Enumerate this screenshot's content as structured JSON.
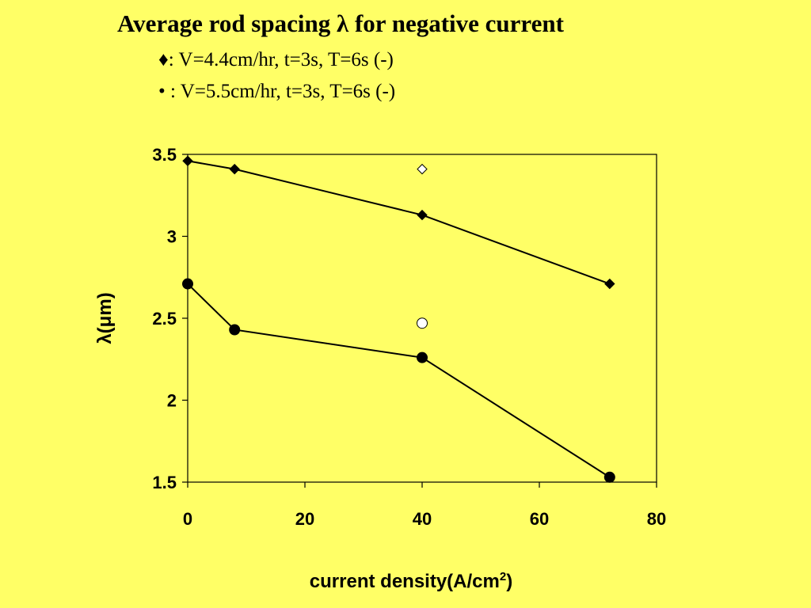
{
  "legend": {
    "series1_marker": "♦",
    "series1_text": ": V=4.4cm/hr, t=3s, T=6s (-)",
    "series2_marker": "•",
    "series2_text": " : V=5.5cm/hr, t=3s, T=6s (-)"
  },
  "chart_data": {
    "type": "line",
    "title": "Average rod spacing λ for negative current",
    "xlabel_main": "current density(A/cm",
    "xlabel_sup": "2",
    "xlabel_end": ")",
    "ylabel": "λ(μm)",
    "xlim": [
      0,
      80
    ],
    "ylim": [
      1.5,
      3.5
    ],
    "x_ticks": [
      0,
      20,
      40,
      60,
      80
    ],
    "x_tick_labels": [
      "0",
      "20",
      "40",
      "60",
      "80"
    ],
    "y_ticks": [
      1.5,
      2,
      2.5,
      3,
      3.5
    ],
    "y_tick_labels": [
      "1.5",
      "2",
      "2.5",
      "3",
      "3.5"
    ],
    "grid": false,
    "series": [
      {
        "name": ": V=4.4cm/hr, t=3s, T=6s (-)",
        "marker": "diamond",
        "x": [
          0,
          8,
          40,
          72
        ],
        "y": [
          3.46,
          3.41,
          3.13,
          2.71
        ]
      },
      {
        "name": " : V=5.5cm/hr, t=3s, T=6s (-)",
        "marker": "circle",
        "x": [
          0,
          8,
          40,
          72
        ],
        "y": [
          2.71,
          2.43,
          2.26,
          1.53
        ]
      }
    ],
    "extra_points": [
      {
        "marker": "diamond-open",
        "x": 40,
        "y": 3.41
      },
      {
        "marker": "circle-open",
        "x": 40,
        "y": 2.47
      }
    ]
  },
  "colors": {
    "background": "#ffff66",
    "plot_area": "#ffff66",
    "ink": "#000000",
    "open_marker_fill": "#ffffff"
  }
}
